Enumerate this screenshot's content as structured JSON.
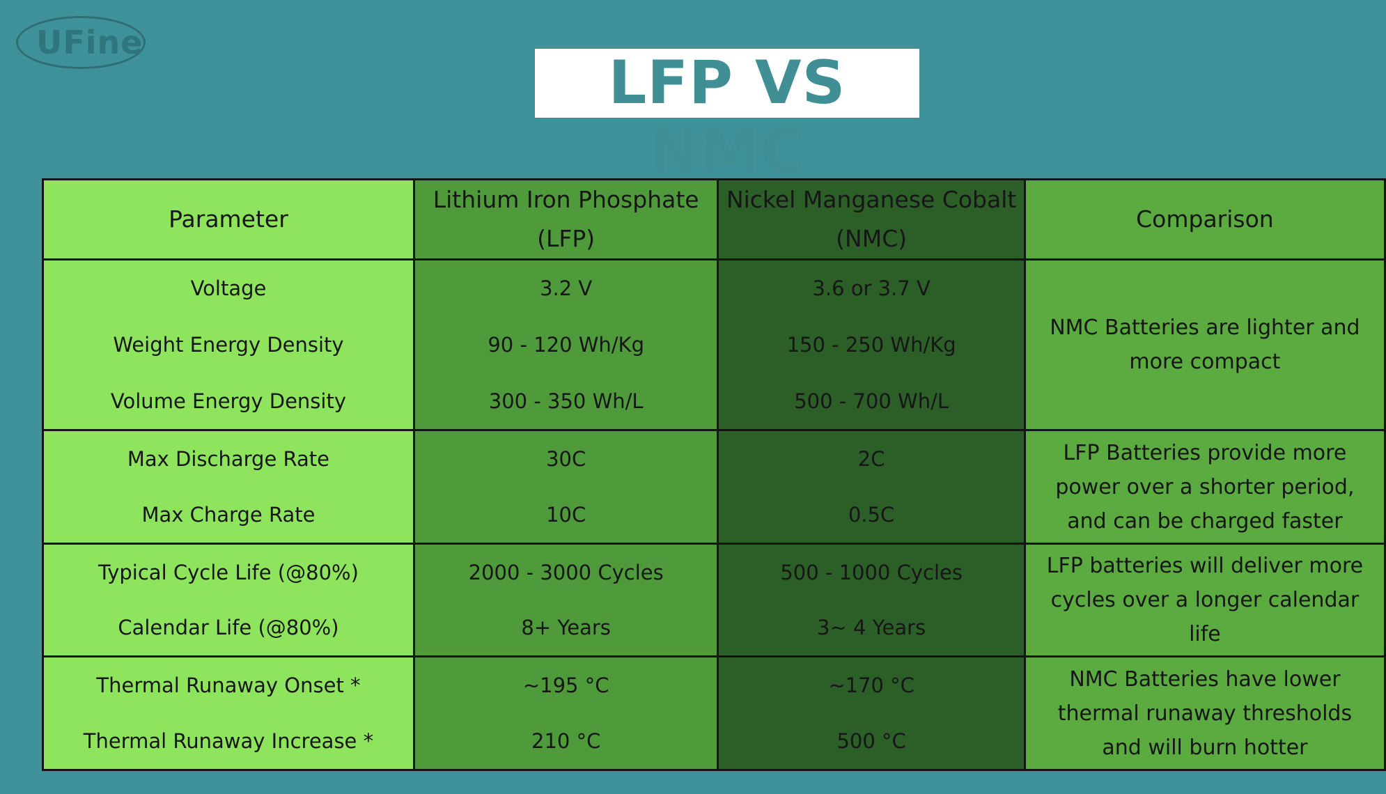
{
  "logo": "UFine",
  "title": "LFP VS NMC",
  "table": {
    "header": [
      "Parameter",
      "Lithium Iron Phosphate (LFP)",
      "Nickel Manganese Cobalt (NMC)",
      "Comparison"
    ],
    "groups": [
      {
        "rows": [
          [
            "Voltage",
            "3.2 V",
            "3.6 or 3.7 V"
          ],
          [
            "Weight Energy Density",
            "90 - 120 Wh/Kg",
            "150 - 250 Wh/Kg"
          ],
          [
            "Volume Energy Density",
            "300 - 350 Wh/L",
            "500 - 700 Wh/L"
          ]
        ],
        "comparison": "NMC Batteries are lighter and more compact"
      },
      {
        "rows": [
          [
            "Max Discharge Rate",
            "30C",
            "2C"
          ],
          [
            "Max Charge Rate",
            "10C",
            "0.5C"
          ]
        ],
        "comparison": "LFP Batteries provide more power over a shorter period, and can be charged faster"
      },
      {
        "rows": [
          [
            "Typical Cycle Life (@80%)",
            "2000 - 3000 Cycles",
            "500 - 1000 Cycles"
          ],
          [
            "Calendar Life (@80%)",
            "8+ Years",
            "3~ 4 Years"
          ]
        ],
        "comparison": "LFP batteries will deliver more cycles over a longer calendar life"
      },
      {
        "rows": [
          [
            "Thermal Runaway Onset *",
            "~195 °C",
            "~170 °C"
          ],
          [
            "Thermal Runaway Increase *",
            "210 °C",
            "500 °C"
          ]
        ],
        "comparison": "NMC Batteries have lower thermal runaway thresholds and will burn hotter"
      }
    ]
  }
}
